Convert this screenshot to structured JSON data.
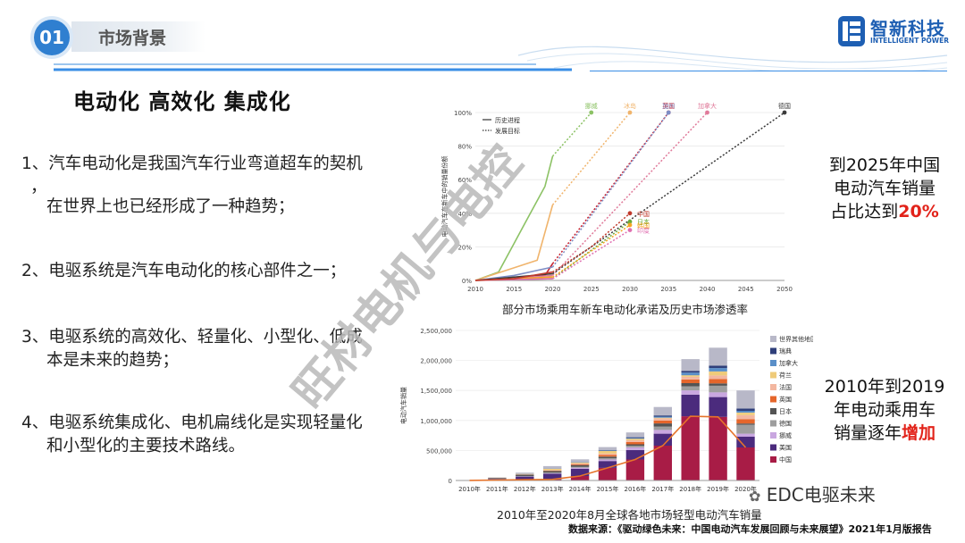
{
  "header": {
    "section_number": "01",
    "section_title": "市场背景"
  },
  "logo": {
    "name_cn": "智新科技",
    "name_en": "INTELLIGENT POWER"
  },
  "heading": "电动化  高效化  集成化",
  "points": [
    {
      "line1": "1、汽车电动化是我国汽车行业弯道超车的契机",
      "line2": "，",
      "line3": "在世界上也已经形成了一种趋势；"
    },
    {
      "line1": "2、电驱系统是汽车电动化的核心部件之一；"
    },
    {
      "line1": "3、电驱系统的高效化、轻量化、小型化、低成",
      "line2": "本是未来的趋势；"
    },
    {
      "line1": "4、电驱系统集成化、电机扁线化是实现轻量化",
      "line2": "和小型化的主要技术路线。"
    }
  ],
  "callout_top": {
    "line1": "到2025年中国",
    "line2": "电动汽车销量",
    "line3_prefix": "占比达到",
    "line3_highlight": "20%"
  },
  "callout_bottom": {
    "line1": "2010年到2019",
    "line2": "年电动乘用车",
    "line3_prefix": "销量逐年",
    "line3_highlight": "增加"
  },
  "watermark": "旺材电机与电控",
  "wechat_tag": "EDC电驱未来",
  "source_note": "数据来源：《驱动绿色未来：中国电动汽车发展回顾与未来展望》2021年1月版报告",
  "colors": {
    "accent_blue": "#2f7fd0",
    "highlight_red": "#e2231a",
    "logo_blue": "#1e5fb3"
  },
  "chart_data": [
    {
      "type": "line",
      "title": "部分市场乘用车新车电动化承诺及历史市场渗透率",
      "ylabel": "电动汽车在新车中的销量份额",
      "x_ticks": [
        2010,
        2015,
        2020,
        2025,
        2030,
        2035,
        2040,
        2045,
        2050
      ],
      "y_ticks": [
        "0%",
        "20%",
        "40%",
        "60%",
        "80%",
        "100%"
      ],
      "xlim": [
        2010,
        2050
      ],
      "ylim": [
        0,
        100
      ],
      "legend": [
        "历史进程",
        "发展目标"
      ],
      "legend_position": "top-left",
      "series": [
        {
          "name": "挪威",
          "color": "#8cc265",
          "historical": [
            [
              2010,
              0
            ],
            [
              2013,
              5
            ],
            [
              2015,
              22
            ],
            [
              2017,
              39
            ],
            [
              2019,
              56
            ],
            [
              2020,
              74
            ]
          ],
          "target": [
            [
              2020,
              74
            ],
            [
              2025,
              100
            ]
          ]
        },
        {
          "name": "英国",
          "color": "#c7212f",
          "historical": [
            [
              2010,
              0
            ],
            [
              2019,
              3
            ],
            [
              2020,
              10
            ]
          ],
          "target": [
            [
              2020,
              10
            ],
            [
              2035,
              100
            ]
          ]
        },
        {
          "name": "冰岛",
          "color": "#f0b46c",
          "historical": [
            [
              2010,
              0
            ],
            [
              2018,
              12
            ],
            [
              2020,
              45
            ]
          ],
          "target": [
            [
              2020,
              45
            ],
            [
              2030,
              100
            ]
          ]
        },
        {
          "name": "加州",
          "color": "#7e8ec6",
          "historical": [
            [
              2010,
              0
            ],
            [
              2015,
              3
            ],
            [
              2020,
              8
            ]
          ],
          "target": [
            [
              2020,
              8
            ],
            [
              2035,
              100
            ]
          ]
        },
        {
          "name": "加拿大",
          "color": "#e07a9a",
          "historical": [
            [
              2010,
              0
            ],
            [
              2020,
              3
            ]
          ],
          "target": [
            [
              2020,
              3
            ],
            [
              2040,
              100
            ]
          ]
        },
        {
          "name": "德国",
          "color": "#3a3a3a",
          "historical": [
            [
              2010,
              0
            ],
            [
              2020,
              4
            ]
          ],
          "target": [
            [
              2020,
              4
            ],
            [
              2050,
              100
            ]
          ]
        },
        {
          "name": "日本",
          "color": "#6aaa3a",
          "historical": [
            [
              2010,
              0
            ],
            [
              2020,
              1
            ]
          ],
          "target": [
            [
              2020,
              1
            ],
            [
              2030,
              35
            ]
          ]
        },
        {
          "name": "韩国",
          "color": "#f5a623",
          "historical": [
            [
              2010,
              0
            ],
            [
              2020,
              2
            ]
          ],
          "target": [
            [
              2020,
              2
            ],
            [
              2030,
              33
            ]
          ]
        },
        {
          "name": "印度",
          "color": "#e06fb0",
          "historical": [
            [
              2010,
              0
            ],
            [
              2020,
              1
            ]
          ],
          "target": [
            [
              2020,
              1
            ],
            [
              2030,
              30
            ]
          ]
        },
        {
          "name": "中国",
          "color": "#c0392b",
          "historical": [
            [
              2010,
              0
            ],
            [
              2015,
              1
            ],
            [
              2020,
              5
            ]
          ],
          "target": [
            [
              2020,
              5
            ],
            [
              2025,
              20
            ],
            [
              2030,
              40
            ]
          ]
        }
      ],
      "annotations": [
        {
          "text": "中国",
          "x": 2030,
          "y": 18
        }
      ]
    },
    {
      "type": "bar",
      "stacked": true,
      "title": "2010年至2020年8月全球各地市场轻型电动汽车销量",
      "ylabel": "电动汽车销量",
      "categories": [
        "2010年",
        "2011年",
        "2012年",
        "2013年",
        "2014年",
        "2015年",
        "2016年",
        "2017年",
        "2018年",
        "2019年",
        "2020年"
      ],
      "y_ticks": [
        "0",
        "500,000",
        "1,000,000",
        "1,500,000",
        "2,000,000",
        "2,500,000"
      ],
      "ylim": [
        0,
        2500000
      ],
      "legend_position": "right",
      "series": [
        {
          "name": "中国",
          "color": "#a81c46",
          "values": [
            1000,
            8000,
            12000,
            18000,
            75000,
            210000,
            350000,
            580000,
            1070000,
            1060000,
            550000
          ]
        },
        {
          "name": "美国",
          "color": "#4b2b7d",
          "values": [
            1000,
            17000,
            53000,
            97000,
            119000,
            114000,
            158000,
            200000,
            360000,
            330000,
            180000
          ]
        },
        {
          "name": "挪威",
          "color": "#c9a7e0",
          "values": [
            0,
            2000,
            4000,
            8000,
            19000,
            25000,
            45000,
            62000,
            72000,
            80000,
            50000
          ]
        },
        {
          "name": "德国",
          "color": "#9e9e9e",
          "values": [
            0,
            2000,
            3000,
            6000,
            13000,
            24000,
            25000,
            55000,
            68000,
            108000,
            150000
          ]
        },
        {
          "name": "日本",
          "color": "#545454",
          "values": [
            0,
            13000,
            25000,
            30000,
            31000,
            25000,
            25000,
            54000,
            52000,
            39000,
            20000
          ]
        },
        {
          "name": "英国",
          "color": "#e5662b",
          "values": [
            0,
            1000,
            2000,
            4000,
            15000,
            29000,
            38000,
            47000,
            60000,
            73000,
            70000
          ]
        },
        {
          "name": "法国",
          "color": "#f3b7a0",
          "values": [
            0,
            3000,
            6000,
            9000,
            12000,
            23000,
            30000,
            37000,
            45000,
            60000,
            70000
          ]
        },
        {
          "name": "荷兰",
          "color": "#efcb7a",
          "values": [
            0,
            1000,
            5000,
            23000,
            15000,
            43000,
            25000,
            11000,
            27000,
            67000,
            40000
          ]
        },
        {
          "name": "加拿大",
          "color": "#5a8fc8",
          "values": [
            0,
            500,
            2500,
            3000,
            5000,
            7000,
            11000,
            18000,
            44000,
            56000,
            30000
          ]
        },
        {
          "name": "瑞典",
          "color": "#2f3f7a",
          "values": [
            0,
            500,
            1000,
            1500,
            4000,
            9000,
            13000,
            20000,
            30000,
            40000,
            40000
          ]
        },
        {
          "name": "世界其他地区",
          "color": "#b8b8c8",
          "values": [
            0,
            5000,
            17000,
            40000,
            45000,
            48000,
            80000,
            140000,
            195000,
            300000,
            300000
          ]
        }
      ],
      "line_series": {
        "name": "中国",
        "color": "#e6732a",
        "values": [
          1000,
          8000,
          12000,
          18000,
          75000,
          210000,
          350000,
          580000,
          1070000,
          1060000,
          550000
        ]
      }
    }
  ]
}
